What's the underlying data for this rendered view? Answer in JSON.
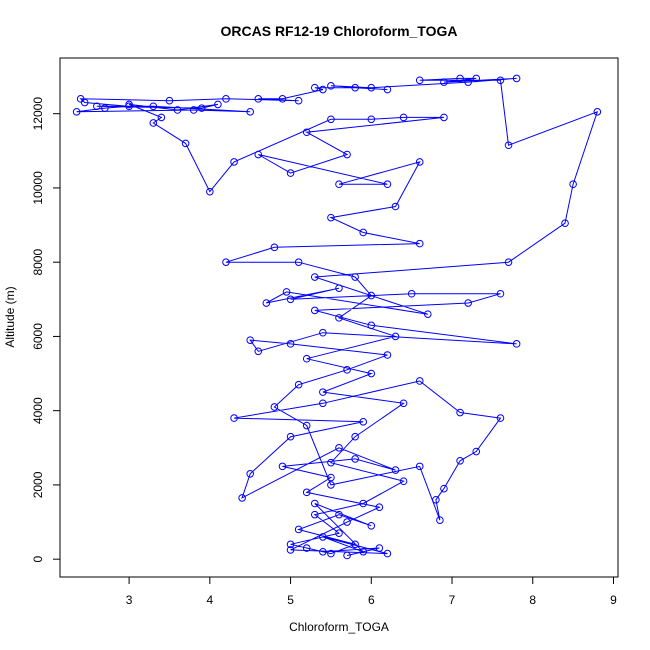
{
  "chart_data": {
    "type": "line",
    "title": "ORCAS RF12-19 Chloroform_TOGA",
    "x_label": "Chloroform_TOGA",
    "y_label": "Altitude (m)",
    "x": [
      5.2,
      5.5,
      5.8,
      5.1,
      5.6,
      6.0,
      5.3,
      5.9,
      5.4,
      6.2,
      5.0,
      5.7,
      6.1,
      5.2,
      5.5,
      4.9,
      5.8,
      6.3,
      5.6,
      4.4,
      4.5,
      5.0,
      5.9,
      4.3,
      5.4,
      6.6,
      7.1,
      7.6,
      7.3,
      7.1,
      6.9,
      6.8,
      6.85,
      6.6,
      5.5,
      5.2,
      4.8,
      5.1,
      5.7,
      6.2,
      5.0,
      4.5,
      4.6,
      5.4,
      7.8,
      6.0,
      5.3,
      7.2,
      7.6,
      6.5,
      5.0,
      5.6,
      4.7,
      4.95,
      6.7,
      5.3,
      7.7,
      8.4,
      8.5,
      8.8,
      7.7,
      7.6,
      6.6,
      7.1,
      7.3,
      6.9,
      7.8,
      7.2,
      6.0,
      5.5,
      6.2,
      5.8,
      5.3,
      5.4,
      4.9,
      4.6,
      5.1,
      4.2,
      3.5,
      2.4,
      2.45,
      3.0,
      2.7,
      2.35,
      3.8,
      4.5,
      3.3,
      2.6,
      3.9,
      4.1,
      3.6,
      3.0,
      3.4,
      3.3,
      3.7,
      4.0,
      4.3,
      5.5,
      6.0,
      6.4,
      6.9,
      5.2,
      5.7,
      5.0,
      4.6,
      6.2,
      5.6,
      6.6,
      6.3,
      5.5,
      5.9,
      6.6,
      4.8,
      4.2,
      5.1,
      5.8,
      6.0,
      5.6,
      6.3,
      5.2,
      6.0,
      5.4,
      6.4,
      5.8,
      5.5,
      6.4,
      5.9,
      5.3,
      5.6,
      5.0,
      5.4,
      6.1,
      5.7
    ],
    "values": [
      300,
      150,
      400,
      800,
      1200,
      900,
      1500,
      200,
      600,
      150,
      250,
      1000,
      1400,
      1800,
      2200,
      2500,
      2700,
      2400,
      3000,
      1650,
      2300,
      3300,
      3700,
      3800,
      4200,
      4800,
      3950,
      3800,
      2900,
      2650,
      1900,
      1600,
      1050,
      2500,
      2000,
      3600,
      4100,
      4700,
      5100,
      5500,
      5800,
      5900,
      5600,
      6100,
      5800,
      6300,
      6700,
      6900,
      7150,
      7150,
      7000,
      7300,
      6900,
      7200,
      6600,
      7600,
      8000,
      9050,
      10100,
      12050,
      11150,
      12900,
      12900,
      12950,
      12950,
      12850,
      12950,
      12850,
      12700,
      12750,
      12650,
      12700,
      12700,
      12650,
      12400,
      12400,
      12350,
      12400,
      12350,
      12400,
      12300,
      12200,
      12150,
      12050,
      12100,
      12050,
      12200,
      12200,
      12150,
      12250,
      12100,
      12250,
      11900,
      11750,
      11200,
      9900,
      10700,
      11850,
      11850,
      11900,
      11900,
      11500,
      10900,
      10400,
      10900,
      10100,
      10100,
      10700,
      9500,
      9200,
      8800,
      8500,
      8400,
      8000,
      8000,
      7600,
      7100,
      6500,
      6000,
      5400,
      5000,
      4500,
      4200,
      3300,
      2600,
      2100,
      1500,
      1200,
      700,
      400,
      200,
      300,
      100
    ],
    "color": "#0000ff",
    "markers": true,
    "xlim": [
      2.144,
      9.056
    ],
    "ylim": [
      -480,
      13500
    ],
    "xticks": [
      3,
      4,
      5,
      6,
      7,
      8,
      9
    ],
    "yticks": [
      0,
      2000,
      4000,
      6000,
      8000,
      10000,
      12000
    ]
  }
}
